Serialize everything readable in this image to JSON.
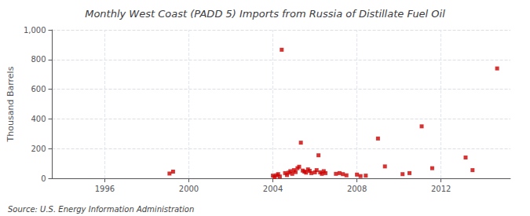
{
  "chart_data": {
    "type": "scatter",
    "title": "Monthly West Coast (PADD 5) Imports from Russia of Distillate Fuel Oil",
    "ylabel": "Thousand Barrels",
    "annotations": [
      "Source: U.S. Energy Information Administration"
    ],
    "color": "#cc0000",
    "marker": "square",
    "grid": true,
    "xlim": [
      1993.5,
      2015.3
    ],
    "xticks": [
      1996,
      2000,
      2004,
      2008,
      2012
    ],
    "ylim": [
      0,
      1000
    ],
    "yticks": [
      0,
      200,
      400,
      600,
      800,
      {
        "value": 1000,
        "label": "1,000"
      }
    ],
    "x": [
      1999.08,
      1999.25,
      2004.0,
      2004.08,
      2004.17,
      2004.25,
      2004.33,
      2004.42,
      2004.58,
      2004.67,
      2004.75,
      2004.83,
      2004.92,
      2005.0,
      2005.08,
      2005.17,
      2005.25,
      2005.33,
      2005.42,
      2005.5,
      2005.58,
      2005.67,
      2005.75,
      2005.83,
      2006.0,
      2006.08,
      2006.17,
      2006.25,
      2006.33,
      2006.42,
      2006.5,
      2007.0,
      2007.17,
      2007.33,
      2007.5,
      2008.0,
      2008.17,
      2008.42,
      2009.0,
      2009.33,
      2010.17,
      2010.5,
      2011.08,
      2011.58,
      2013.17,
      2013.5,
      2014.67
    ],
    "values": [
      32,
      45,
      18,
      8,
      20,
      28,
      12,
      866,
      35,
      22,
      38,
      48,
      30,
      55,
      42,
      68,
      78,
      240,
      52,
      45,
      38,
      60,
      50,
      35,
      40,
      55,
      155,
      40,
      30,
      48,
      35,
      30,
      35,
      28,
      20,
      25,
      15,
      18,
      268,
      80,
      28,
      35,
      350,
      68,
      140,
      55,
      740
    ]
  }
}
